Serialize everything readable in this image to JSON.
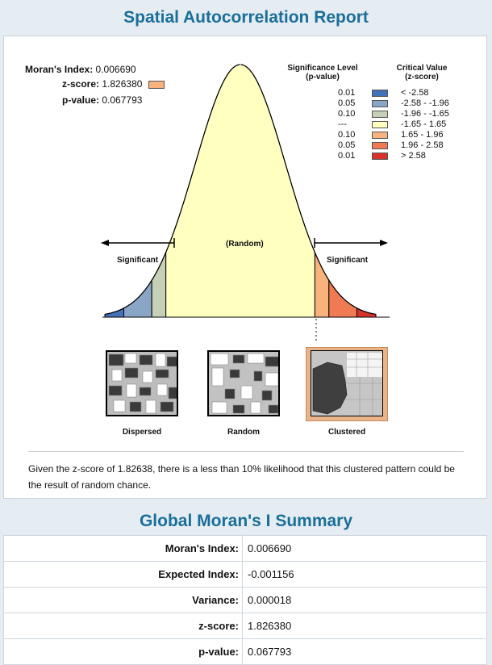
{
  "report": {
    "title": "Spatial Autocorrelation Report",
    "stats": {
      "morans_label": "Moran's Index:",
      "morans_value": "0.006690",
      "z_label": "z-score:",
      "z_value": "1.826380",
      "p_label": "p-value:",
      "p_value": "0.067793"
    },
    "legend": {
      "sig_header_1": "Significance Level",
      "sig_header_2": "(p-value)",
      "crit_header_1": "Critical Value",
      "crit_header_2": "(z-score)",
      "rows": [
        {
          "p": "0.01",
          "z": "< -2.58",
          "color": "#4472b8"
        },
        {
          "p": "0.05",
          "z": "-2.58 - -1.96",
          "color": "#8aa6c6"
        },
        {
          "p": "0.10",
          "z": "-1.96 - -1.65",
          "color": "#c6d0b6"
        },
        {
          "p": "---",
          "z": "-1.65 - 1.65",
          "color": "#ffffc0"
        },
        {
          "p": "0.10",
          "z": "1.65 - 1.96",
          "color": "#f8b27c"
        },
        {
          "p": "0.05",
          "z": "1.96 - 2.58",
          "color": "#f07a54"
        },
        {
          "p": "0.01",
          "z": "> 2.58",
          "color": "#d7332a"
        }
      ]
    },
    "curve_labels": {
      "left": "Significant",
      "center": "(Random)",
      "right": "Significant"
    },
    "patterns": [
      "Dispersed",
      "Random",
      "Clustered"
    ],
    "conclusion": "Given the z-score of 1.82638, there is a less than 10% likelihood that this clustered pattern could be the result of random chance."
  },
  "summary": {
    "title": "Global Moran's I Summary",
    "rows": [
      {
        "label": "Moran's Index:",
        "value": "0.006690"
      },
      {
        "label": "Expected Index:",
        "value": "-0.001156"
      },
      {
        "label": "Variance:",
        "value": "0.000018"
      },
      {
        "label": "z-score:",
        "value": "1.826380"
      },
      {
        "label": "p-value:",
        "value": "0.067793"
      }
    ]
  }
}
